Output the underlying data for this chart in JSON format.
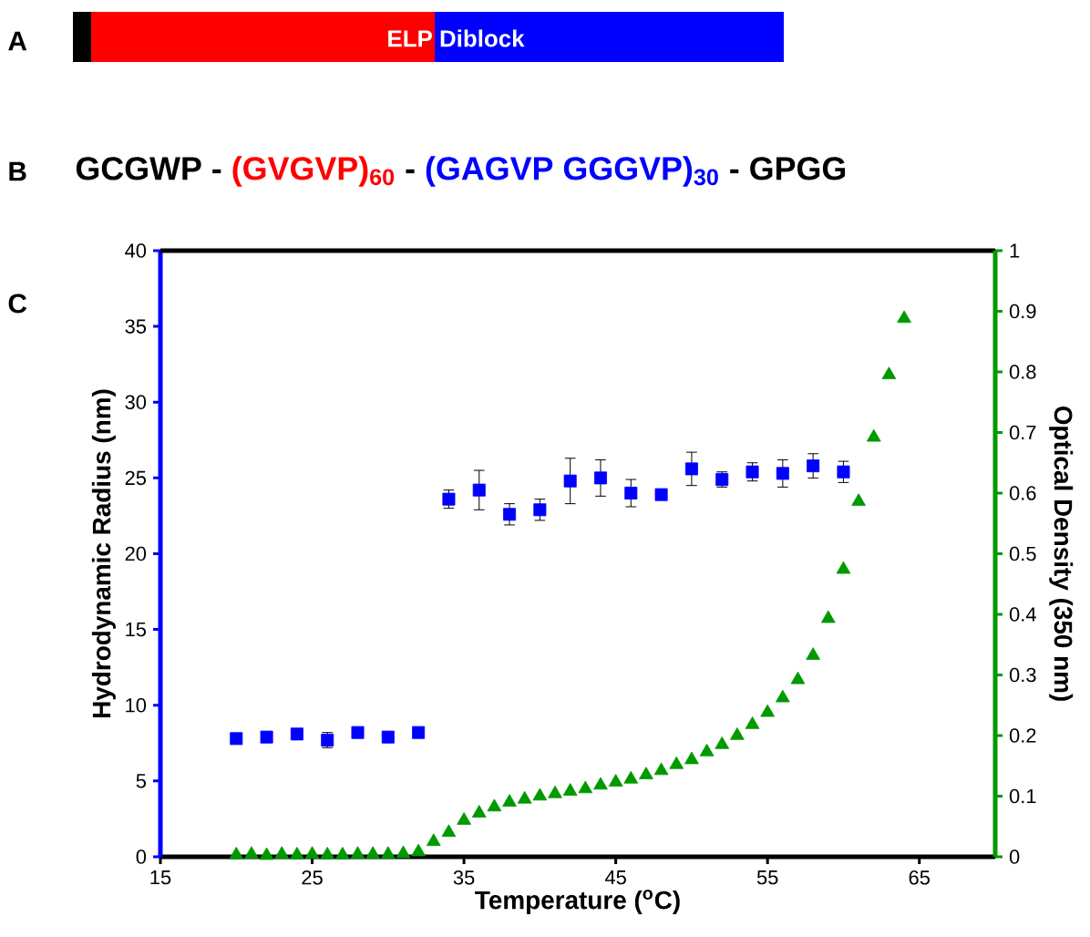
{
  "chart_data": {
    "type": "scatter",
    "xlabel": "Temperature ($^{o}$C)",
    "ylabel": "Hydrodynamic Radius (nm)",
    "y2label": "Optical Density (350 nm)",
    "annotations": [
      "A",
      "ELP Diblock",
      "B",
      "GCGWP -",
      "(GVGVP)$_{60}$",
      "-",
      "(GAGVP GGGVP)$_{30}$",
      "- GPGG",
      "C"
    ],
    "xlim": [
      15,
      70
    ],
    "xticks": [
      15,
      25,
      35,
      45,
      55,
      65
    ],
    "ylim": [
      0,
      40
    ],
    "yticks": [
      0,
      5,
      10,
      15,
      20,
      25,
      30,
      35,
      40
    ],
    "y2lim": [
      0,
      1
    ],
    "y2ticks": [
      0,
      0.1,
      0.2,
      0.3,
      0.4,
      0.5,
      0.6,
      0.7,
      0.8,
      0.9,
      1
    ],
    "grid": false,
    "series": [
      {
        "color": "#0000ff",
        "marker": "square",
        "x": [
          20,
          22,
          24,
          26,
          28,
          30,
          32,
          34,
          36,
          38,
          40,
          42,
          44,
          46,
          48,
          50,
          52,
          54,
          56,
          58,
          60
        ],
        "values": [
          7.8,
          7.9,
          8.1,
          7.7,
          8.2,
          7.9,
          8.2,
          23.6,
          24.2,
          22.6,
          22.9,
          24.8,
          25.0,
          24.0,
          23.9,
          25.6,
          24.9,
          25.4,
          25.3,
          25.8,
          25.4
        ],
        "errors": [
          null,
          null,
          null,
          0.5,
          null,
          null,
          null,
          0.6,
          1.3,
          0.7,
          0.7,
          1.5,
          1.2,
          0.9,
          null,
          1.1,
          0.5,
          0.6,
          0.9,
          0.8,
          0.7
        ]
      },
      {
        "color": "#009900",
        "marker": "triangle",
        "axis": "y2",
        "x": [
          20,
          21,
          22,
          23,
          24,
          25,
          26,
          27,
          28,
          29,
          30,
          31,
          32,
          33,
          34,
          35,
          36,
          37,
          38,
          39,
          40,
          41,
          42,
          43,
          44,
          45,
          46,
          47,
          48,
          49,
          50,
          51,
          52,
          53,
          54,
          55,
          56,
          57,
          58,
          59,
          60,
          61,
          62,
          63,
          64
        ],
        "values": [
          0.003,
          0.004,
          0.002,
          0.004,
          0.003,
          0.004,
          0.003,
          0.003,
          0.004,
          0.004,
          0.004,
          0.005,
          0.008,
          0.025,
          0.04,
          0.06,
          0.072,
          0.082,
          0.09,
          0.095,
          0.1,
          0.104,
          0.108,
          0.112,
          0.118,
          0.123,
          0.128,
          0.135,
          0.142,
          0.152,
          0.16,
          0.173,
          0.185,
          0.2,
          0.218,
          0.238,
          0.262,
          0.292,
          0.332,
          0.393,
          0.474,
          0.586,
          0.692,
          0.795,
          0.888
        ]
      }
    ]
  }
}
